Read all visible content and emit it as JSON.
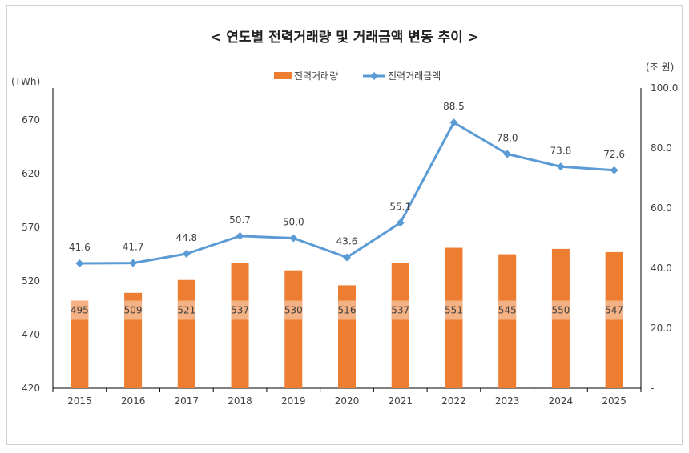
{
  "chart_data": {
    "type": "bar",
    "title": "< 연도별 전력거래량 및 거래금액 변동 추이 >",
    "categories": [
      "2015",
      "2016",
      "2017",
      "2018",
      "2019",
      "2020",
      "2021",
      "2022",
      "2023",
      "2024",
      "2025"
    ],
    "series": [
      {
        "name": "전력거래량",
        "type": "bar",
        "axis": "left",
        "color": "#ED7D31",
        "label_bg": "#F4B183",
        "values": [
          495,
          509,
          521,
          537,
          530,
          516,
          537,
          551,
          545,
          550,
          547
        ]
      },
      {
        "name": "전력거래금액",
        "type": "line",
        "axis": "right",
        "color": "#5B9BD5",
        "marker": "diamond",
        "values": [
          41.6,
          41.7,
          44.8,
          50.7,
          50.0,
          43.6,
          55.1,
          88.5,
          78.0,
          73.8,
          72.6
        ]
      }
    ],
    "y_left": {
      "unit": "(TWh)",
      "ylim": [
        420,
        700
      ],
      "ticks": [
        "420",
        "470",
        "520",
        "570",
        "620",
        "670"
      ],
      "tick_values": [
        420,
        470,
        520,
        570,
        620,
        670
      ]
    },
    "y_right": {
      "unit": "(조 원)",
      "ylim": [
        0,
        100
      ],
      "ticks": [
        "-",
        "20.0",
        "40.0",
        "60.0",
        "80.0",
        "100.0"
      ],
      "tick_values": [
        0,
        20,
        40,
        60,
        80,
        100
      ]
    },
    "legend": {
      "position": "top",
      "items": [
        "전력거래량",
        "전력거래금액"
      ]
    },
    "grid": false,
    "axis_color": "#000000"
  }
}
